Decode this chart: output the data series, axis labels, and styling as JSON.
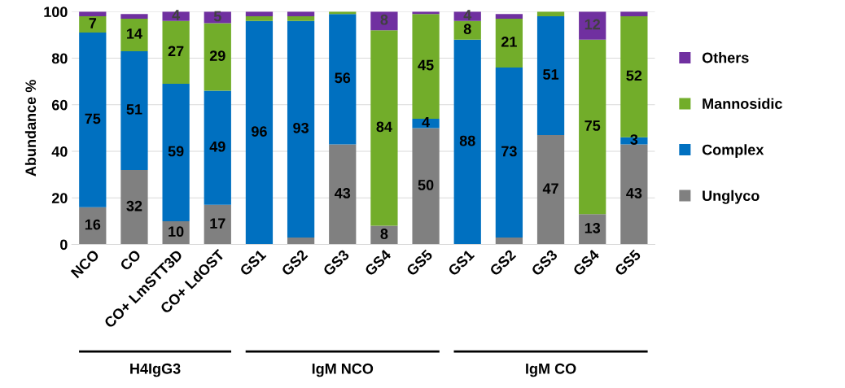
{
  "chart_data": {
    "type": "bar",
    "stacked": true,
    "ylabel": "Abundance %",
    "categories": [
      "NCO",
      "CO",
      "CO+ LmSTT3D",
      "CO+ LdOST",
      "GS1",
      "GS2",
      "GS3",
      "GS4",
      "GS5",
      "GS1",
      "GS2",
      "GS3",
      "GS4",
      "GS5"
    ],
    "series": [
      {
        "name": "Unglyco",
        "color": "#808080",
        "values": [
          16,
          32,
          10,
          17,
          0,
          3,
          43,
          8,
          50,
          0,
          3,
          47,
          13,
          43
        ],
        "value_labels": [
          "16",
          "32",
          "10",
          "17",
          null,
          null,
          "43",
          "8",
          "50",
          null,
          null,
          "47",
          "13",
          "43"
        ]
      },
      {
        "name": "Complex",
        "color": "#0070c0",
        "values": [
          75,
          51,
          59,
          49,
          96,
          93,
          56,
          0,
          4,
          88,
          73,
          51,
          0,
          3
        ],
        "value_labels": [
          "75",
          "51",
          "59",
          "49",
          "96",
          "93",
          "56",
          null,
          "4",
          "88",
          "73",
          "51",
          null,
          "3"
        ]
      },
      {
        "name": "Mannosidic",
        "color": "#72ad2a",
        "values": [
          7,
          14,
          27,
          29,
          2,
          2,
          1,
          84,
          45,
          8,
          21,
          2,
          75,
          52
        ],
        "value_labels": [
          "7",
          "14",
          "27",
          "29",
          null,
          null,
          null,
          "84",
          "45",
          "8",
          "21",
          null,
          "75",
          "52"
        ]
      },
      {
        "name": "Others",
        "color": "#7030a0",
        "values": [
          2,
          2,
          4,
          5,
          2,
          2,
          0,
          8,
          1,
          4,
          2,
          0,
          12,
          2
        ],
        "value_labels": [
          null,
          null,
          "4",
          "5",
          null,
          null,
          null,
          "8",
          null,
          "4",
          null,
          null,
          "12",
          null
        ]
      }
    ],
    "ylim": [
      0,
      100
    ],
    "yticks": [
      0,
      20,
      40,
      60,
      80,
      100
    ],
    "grid": "y",
    "legend": "right",
    "annotations": [
      "H4IgG3",
      "IgM NCO",
      "IgM CO"
    ]
  }
}
